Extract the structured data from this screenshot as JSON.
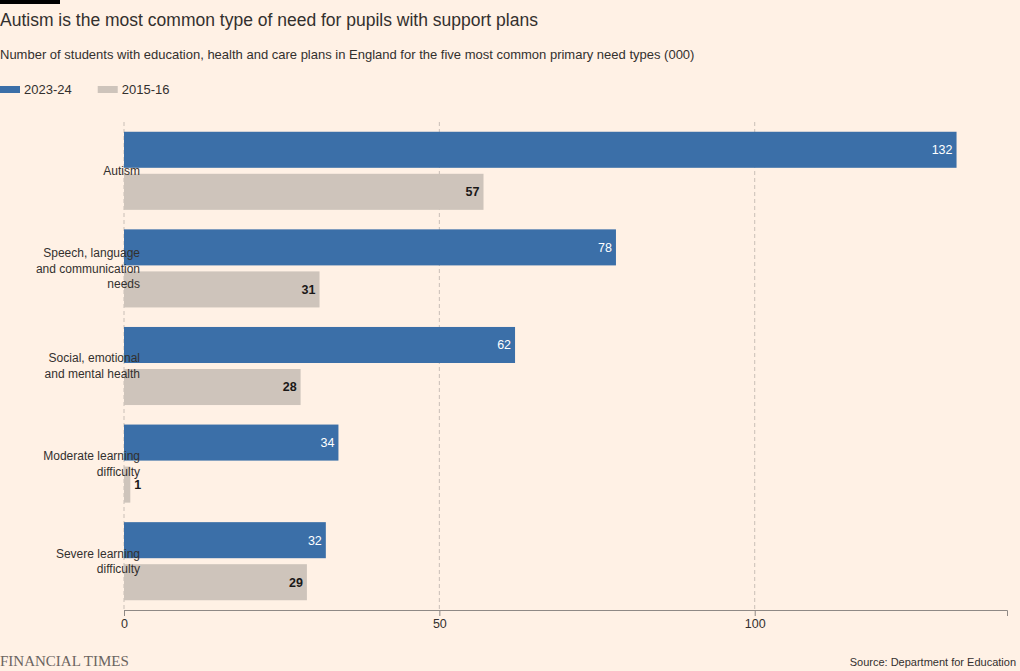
{
  "chart_data": {
    "type": "bar",
    "title": "Autism is the most common type of need for pupils with support plans",
    "subtitle": "Number of students with education, health and care plans in England for the five most common primary need types (000)",
    "categories": [
      "Autism",
      "Speech, language and communication needs",
      "Social, emotional and mental health",
      "Moderate learning difficulty",
      "Severe learning difficulty"
    ],
    "series": [
      {
        "name": "2023-24",
        "color": "#3b6fa8",
        "values": [
          132,
          78,
          62,
          34,
          32
        ]
      },
      {
        "name": "2015-16",
        "color": "#cec4bb",
        "values": [
          57,
          31,
          28,
          1,
          29
        ]
      }
    ],
    "orientation": "horizontal",
    "xlim": [
      0,
      140
    ],
    "xticks": [
      0,
      50,
      100
    ],
    "grid": true,
    "legend": "top-left",
    "data_labels": true,
    "source": "Source: Department for Education",
    "credit": "FINANCIAL TIMES"
  }
}
